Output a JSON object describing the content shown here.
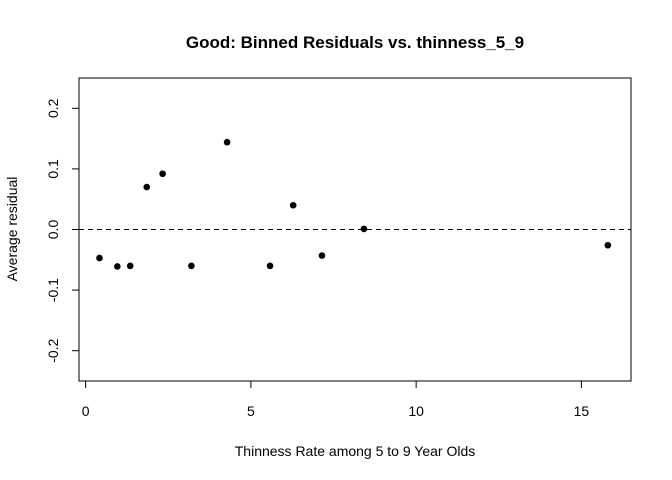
{
  "chart_data": {
    "type": "scatter",
    "title": "Good: Binned Residuals vs. thinness_5_9",
    "xlabel": "Thinness Rate among 5 to 9 Year Olds",
    "ylabel": "Average residual",
    "xlim": [
      -0.2,
      16.5
    ],
    "ylim": [
      -0.25,
      0.25
    ],
    "xticks": [
      0,
      5,
      10,
      15
    ],
    "xtick_labels": [
      "0",
      "5",
      "10",
      "15"
    ],
    "yticks": [
      -0.2,
      -0.1,
      0.0,
      0.1,
      0.2
    ],
    "ytick_labels": [
      "-0.2",
      "-0.1",
      "0.0",
      "0.1",
      "0.2"
    ],
    "reference_line": {
      "y": 0,
      "style": "dashed"
    },
    "grid": false,
    "points": [
      {
        "x": 0.42,
        "y": -0.047
      },
      {
        "x": 0.96,
        "y": -0.061
      },
      {
        "x": 1.35,
        "y": -0.06
      },
      {
        "x": 1.85,
        "y": 0.07
      },
      {
        "x": 2.33,
        "y": 0.092
      },
      {
        "x": 3.2,
        "y": -0.06
      },
      {
        "x": 4.28,
        "y": 0.144
      },
      {
        "x": 5.58,
        "y": -0.06
      },
      {
        "x": 6.28,
        "y": 0.04
      },
      {
        "x": 7.15,
        "y": -0.043
      },
      {
        "x": 8.42,
        "y": 0.001
      },
      {
        "x": 15.8,
        "y": -0.026
      }
    ]
  }
}
